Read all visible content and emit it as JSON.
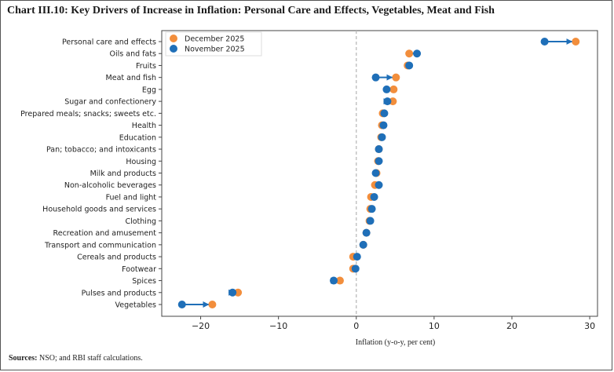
{
  "title": "Chart III.10: Key Drivers of Increase in Inflation: Personal Care and Effects, Vegetables, Meat and Fish",
  "sources_label": "Sources:",
  "sources_text": " NSO; and RBI staff calculations.",
  "chart_data": {
    "type": "dumbbell",
    "xlabel": "Inflation (y-o-y, per cent)",
    "xlim": [
      -25,
      31
    ],
    "xticks": [
      -20,
      -10,
      0,
      10,
      20,
      30
    ],
    "xtick_labels": [
      "−20",
      "−10",
      "0",
      "10",
      "20",
      "30"
    ],
    "legend_position": "top-left",
    "reference_line": 0,
    "colors": {
      "December 2025": "#f28e3c",
      "November 2025": "#1f6fb8"
    },
    "categories": [
      "Personal care and effects",
      "Oils and fats",
      "Fruits",
      "Meat and fish",
      "Egg",
      "Sugar and confectionery",
      "Prepared meals; snacks; sweets etc.",
      "Health",
      "Education",
      "Pan; tobacco; and intoxicants",
      "Housing",
      "Milk and products",
      "Non-alcoholic beverages",
      "Fuel and light",
      "Household goods and services",
      "Clothing",
      "Recreation and amusement",
      "Transport and communication",
      "Cereals and products",
      "Footwear",
      "Spices",
      "Pulses and products",
      "Vegetables"
    ],
    "series": [
      {
        "name": "December 2025",
        "values": [
          28.2,
          6.8,
          6.6,
          5.1,
          4.8,
          4.7,
          3.4,
          3.3,
          3.2,
          2.9,
          2.8,
          2.6,
          2.4,
          1.9,
          1.8,
          1.7,
          1.3,
          0.9,
          -0.4,
          -0.4,
          -2.1,
          -15.2,
          -18.5
        ]
      },
      {
        "name": "November 2025",
        "values": [
          24.2,
          7.8,
          6.8,
          2.5,
          3.9,
          4.0,
          3.6,
          3.5,
          3.3,
          2.9,
          2.9,
          2.5,
          2.9,
          2.3,
          2.0,
          1.8,
          1.3,
          0.9,
          0.1,
          -0.1,
          -2.9,
          -15.9,
          -22.4
        ]
      }
    ]
  }
}
